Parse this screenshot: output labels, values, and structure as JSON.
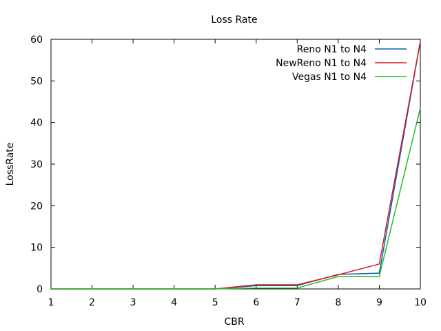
{
  "chart_data": {
    "type": "line",
    "title": "Loss Rate",
    "xlabel": "CBR",
    "ylabel": "LossRate",
    "xlim": [
      1,
      10
    ],
    "ylim": [
      0,
      60
    ],
    "xticks": [
      1,
      2,
      3,
      4,
      5,
      6,
      7,
      8,
      9,
      10
    ],
    "yticks": [
      0,
      10,
      20,
      30,
      40,
      50,
      60
    ],
    "grid": false,
    "legend_position": "top-right",
    "x": [
      1,
      2,
      3,
      4,
      5,
      6,
      7,
      8,
      9,
      10
    ],
    "series": [
      {
        "name": "Reno N1 to N4",
        "color": "#0060ad",
        "values": [
          0,
          0,
          0,
          0,
          0,
          0.8,
          0.8,
          3.5,
          3.8,
          59.5
        ]
      },
      {
        "name": "NewReno N1 to N4",
        "color": "#dd181f",
        "values": [
          0,
          0,
          0,
          0,
          0,
          1.0,
          1.0,
          3.4,
          6.0,
          59.5
        ]
      },
      {
        "name": "Vegas N1 to N4",
        "color": "#22bb22",
        "values": [
          0,
          0,
          0,
          0,
          0,
          0.2,
          0.2,
          3.0,
          3.0,
          43.5
        ]
      }
    ]
  }
}
